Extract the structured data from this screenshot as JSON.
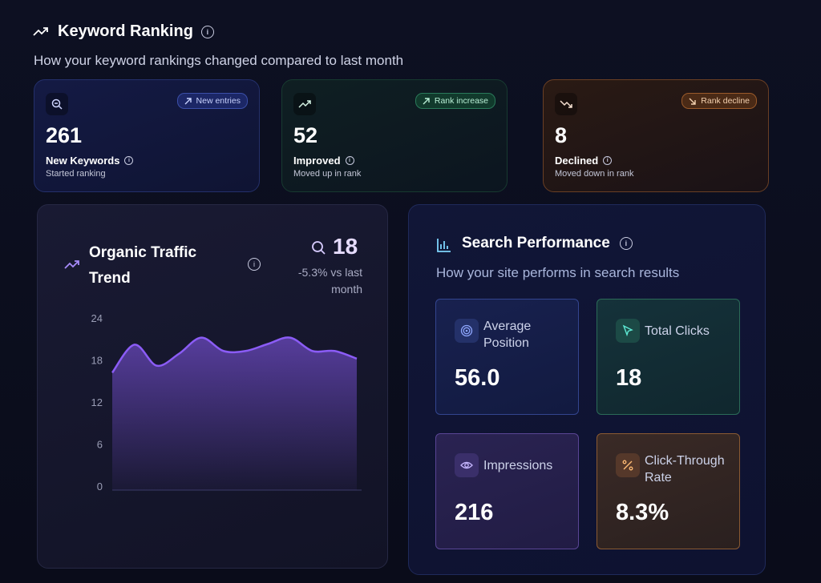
{
  "header": {
    "title": "Keyword Ranking",
    "subtitle": "How your keyword rankings changed compared to last month"
  },
  "ranking_cards": [
    {
      "badge": "New entries",
      "value": 261,
      "label": "New Keywords",
      "note": "Started ranking"
    },
    {
      "badge": "Rank increase",
      "value": 52,
      "label": "Improved",
      "note": "Moved up in rank"
    },
    {
      "badge": "Rank decline",
      "value": 8,
      "label": "Declined",
      "note": "Moved down in rank"
    }
  ],
  "traffic": {
    "title": "Organic Traffic Trend",
    "value": 18,
    "change": "-5.3% vs last month",
    "chart_data": {
      "type": "area",
      "values": [
        16.3,
        20.3,
        17.3,
        19.0,
        21.3,
        19.4,
        19.4,
        20.4,
        21.3,
        19.4,
        19.4,
        18.3
      ],
      "color": "#8b5cf6",
      "ylim": [
        0,
        24
      ],
      "yticks": [
        0,
        6,
        12,
        18,
        24
      ],
      "grid": false
    }
  },
  "performance": {
    "title": "Search Performance",
    "subtitle": "How your site performs in search results",
    "metrics": [
      {
        "label": "Average Position",
        "value": "56.0"
      },
      {
        "label": "Total Clicks",
        "value": 18
      },
      {
        "label": "Impressions",
        "value": 216
      },
      {
        "label": "Click-Through Rate",
        "value": "8.3%"
      }
    ]
  }
}
